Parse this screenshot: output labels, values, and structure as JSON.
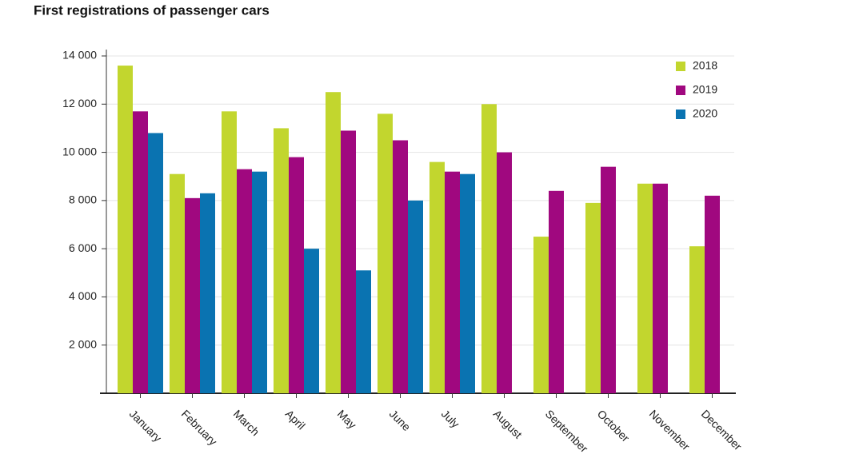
{
  "chart_data": {
    "type": "bar",
    "title": "First registrations of passenger cars",
    "categories": [
      "January",
      "February",
      "March",
      "April",
      "May",
      "June",
      "July",
      "August",
      "September",
      "October",
      "November",
      "December"
    ],
    "series": [
      {
        "name": "2018",
        "color": "#c2d62e",
        "values": [
          13600,
          9100,
          11700,
          11000,
          12500,
          11600,
          9600,
          12000,
          6500,
          7900,
          8700,
          6100
        ]
      },
      {
        "name": "2019",
        "color": "#a0087f",
        "values": [
          11700,
          8100,
          9300,
          9800,
          10900,
          10500,
          9200,
          10000,
          8400,
          9400,
          8700,
          8200
        ]
      },
      {
        "name": "2020",
        "color": "#0a73b1",
        "values": [
          10800,
          8300,
          9200,
          6000,
          5100,
          8000,
          9100,
          null,
          null,
          null,
          null,
          null
        ]
      }
    ],
    "ylim": [
      0,
      14000
    ],
    "yticks": [
      {
        "value": 2000,
        "label": "2 000"
      },
      {
        "value": 4000,
        "label": "4 000"
      },
      {
        "value": 6000,
        "label": "6 000"
      },
      {
        "value": 8000,
        "label": "8 000"
      },
      {
        "value": 10000,
        "label": "10 000"
      },
      {
        "value": 12000,
        "label": "12 000"
      },
      {
        "value": 14000,
        "label": "14 000"
      }
    ],
    "grid": true,
    "legend": "top-right"
  }
}
